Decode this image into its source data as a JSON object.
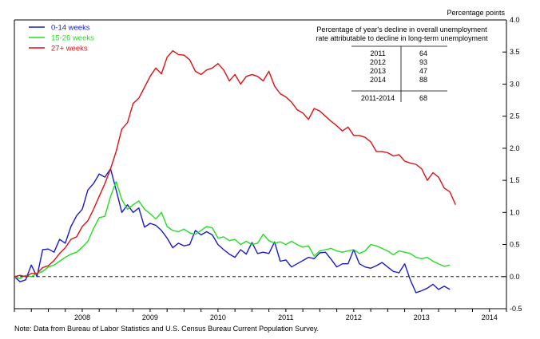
{
  "chart_data": {
    "type": "line",
    "ylabel": "Percentage points",
    "ylim": [
      -0.5,
      4.0
    ],
    "xlim": [
      "2007-07",
      "2014-10"
    ],
    "y_ticks": [
      "4.0",
      "3.5",
      "3.0",
      "2.5",
      "2.0",
      "1.5",
      "1.0",
      "0.5",
      "0.0",
      "-0.5"
    ],
    "x_tick_labels": [
      "2008",
      "2009",
      "2010",
      "2011",
      "2012",
      "2013",
      "2014"
    ],
    "zero_line": "dashed",
    "legend_position": "top-left",
    "series": [
      {
        "name": "0-14 weeks",
        "color": "#1a1acc",
        "points": [
          [
            "2007-07",
            0.0
          ],
          [
            "2007-08",
            -0.08
          ],
          [
            "2007-09",
            -0.05
          ],
          [
            "2007-10",
            0.18
          ],
          [
            "2007-11",
            0.0
          ],
          [
            "2007-12",
            0.42
          ],
          [
            "2008-01",
            0.43
          ],
          [
            "2008-02",
            0.38
          ],
          [
            "2008-03",
            0.58
          ],
          [
            "2008-04",
            0.52
          ],
          [
            "2008-05",
            0.78
          ],
          [
            "2008-06",
            0.95
          ],
          [
            "2008-07",
            1.05
          ],
          [
            "2008-08",
            1.35
          ],
          [
            "2008-09",
            1.45
          ],
          [
            "2008-10",
            1.6
          ],
          [
            "2008-11",
            1.55
          ],
          [
            "2008-12",
            1.68
          ],
          [
            "2009-01",
            1.35
          ],
          [
            "2009-02",
            1.0
          ],
          [
            "2009-03",
            1.12
          ],
          [
            "2009-04",
            1.0
          ],
          [
            "2009-05",
            1.07
          ],
          [
            "2009-06",
            0.77
          ],
          [
            "2009-07",
            0.83
          ],
          [
            "2009-08",
            0.8
          ],
          [
            "2009-09",
            0.72
          ],
          [
            "2009-10",
            0.6
          ],
          [
            "2009-11",
            0.45
          ],
          [
            "2009-12",
            0.52
          ],
          [
            "2010-01",
            0.48
          ],
          [
            "2010-02",
            0.5
          ],
          [
            "2010-03",
            0.72
          ],
          [
            "2010-04",
            0.65
          ],
          [
            "2010-05",
            0.7
          ],
          [
            "2010-06",
            0.65
          ],
          [
            "2010-07",
            0.5
          ],
          [
            "2010-08",
            0.42
          ],
          [
            "2010-09",
            0.35
          ],
          [
            "2010-10",
            0.3
          ],
          [
            "2010-11",
            0.42
          ],
          [
            "2010-12",
            0.35
          ],
          [
            "2011-01",
            0.53
          ],
          [
            "2011-02",
            0.36
          ],
          [
            "2011-03",
            0.38
          ],
          [
            "2011-04",
            0.36
          ],
          [
            "2011-05",
            0.54
          ],
          [
            "2011-06",
            0.24
          ],
          [
            "2011-07",
            0.26
          ],
          [
            "2011-08",
            0.15
          ],
          [
            "2011-09",
            0.2
          ],
          [
            "2011-10",
            0.25
          ],
          [
            "2011-11",
            0.3
          ],
          [
            "2011-12",
            0.28
          ],
          [
            "2012-01",
            0.37
          ],
          [
            "2012-02",
            0.38
          ],
          [
            "2012-03",
            0.27
          ],
          [
            "2012-04",
            0.15
          ],
          [
            "2012-05",
            0.2
          ],
          [
            "2012-06",
            0.2
          ],
          [
            "2012-07",
            0.42
          ],
          [
            "2012-08",
            0.2
          ],
          [
            "2012-09",
            0.15
          ],
          [
            "2012-10",
            0.13
          ],
          [
            "2012-11",
            0.17
          ],
          [
            "2012-12",
            0.22
          ],
          [
            "2013-01",
            0.15
          ],
          [
            "2013-02",
            0.08
          ],
          [
            "2013-03",
            0.06
          ],
          [
            "2013-04",
            0.2
          ],
          [
            "2013-05",
            -0.05
          ],
          [
            "2013-06",
            -0.25
          ],
          [
            "2013-07",
            -0.22
          ],
          [
            "2013-08",
            -0.18
          ],
          [
            "2013-09",
            -0.12
          ],
          [
            "2013-10",
            -0.2
          ],
          [
            "2013-11",
            -0.15
          ],
          [
            "2013-12",
            -0.2
          ]
        ]
      },
      {
        "name": "15-26 weeks",
        "color": "#22dd22",
        "points": [
          [
            "2007-07",
            0.0
          ],
          [
            "2007-08",
            -0.03
          ],
          [
            "2007-09",
            0.02
          ],
          [
            "2007-10",
            0.0
          ],
          [
            "2007-11",
            0.05
          ],
          [
            "2007-12",
            0.08
          ],
          [
            "2008-01",
            0.15
          ],
          [
            "2008-02",
            0.18
          ],
          [
            "2008-03",
            0.24
          ],
          [
            "2008-04",
            0.3
          ],
          [
            "2008-05",
            0.35
          ],
          [
            "2008-06",
            0.38
          ],
          [
            "2008-07",
            0.46
          ],
          [
            "2008-08",
            0.55
          ],
          [
            "2008-09",
            0.75
          ],
          [
            "2008-10",
            0.92
          ],
          [
            "2008-11",
            0.94
          ],
          [
            "2008-12",
            1.25
          ],
          [
            "2009-01",
            1.48
          ],
          [
            "2009-02",
            1.2
          ],
          [
            "2009-03",
            1.05
          ],
          [
            "2009-04",
            1.12
          ],
          [
            "2009-05",
            1.18
          ],
          [
            "2009-06",
            1.05
          ],
          [
            "2009-07",
            0.98
          ],
          [
            "2009-08",
            0.9
          ],
          [
            "2009-09",
            1.0
          ],
          [
            "2009-10",
            0.78
          ],
          [
            "2009-11",
            0.72
          ],
          [
            "2009-12",
            0.7
          ],
          [
            "2010-01",
            0.74
          ],
          [
            "2010-02",
            0.68
          ],
          [
            "2010-03",
            0.66
          ],
          [
            "2010-04",
            0.72
          ],
          [
            "2010-05",
            0.78
          ],
          [
            "2010-06",
            0.76
          ],
          [
            "2010-07",
            0.6
          ],
          [
            "2010-08",
            0.62
          ],
          [
            "2010-09",
            0.56
          ],
          [
            "2010-10",
            0.58
          ],
          [
            "2010-11",
            0.5
          ],
          [
            "2010-12",
            0.55
          ],
          [
            "2011-01",
            0.5
          ],
          [
            "2011-02",
            0.52
          ],
          [
            "2011-03",
            0.66
          ],
          [
            "2011-04",
            0.56
          ],
          [
            "2011-05",
            0.52
          ],
          [
            "2011-06",
            0.54
          ],
          [
            "2011-07",
            0.5
          ],
          [
            "2011-08",
            0.55
          ],
          [
            "2011-09",
            0.5
          ],
          [
            "2011-10",
            0.46
          ],
          [
            "2011-11",
            0.48
          ],
          [
            "2011-12",
            0.32
          ],
          [
            "2012-01",
            0.4
          ],
          [
            "2012-02",
            0.42
          ],
          [
            "2012-03",
            0.44
          ],
          [
            "2012-04",
            0.4
          ],
          [
            "2012-05",
            0.38
          ],
          [
            "2012-06",
            0.4
          ],
          [
            "2012-07",
            0.42
          ],
          [
            "2012-08",
            0.36
          ],
          [
            "2012-09",
            0.4
          ],
          [
            "2012-10",
            0.5
          ],
          [
            "2012-11",
            0.48
          ],
          [
            "2012-12",
            0.44
          ],
          [
            "2013-01",
            0.4
          ],
          [
            "2013-02",
            0.34
          ],
          [
            "2013-03",
            0.4
          ],
          [
            "2013-04",
            0.38
          ],
          [
            "2013-05",
            0.36
          ],
          [
            "2013-06",
            0.3
          ],
          [
            "2013-07",
            0.28
          ],
          [
            "2013-08",
            0.3
          ],
          [
            "2013-09",
            0.24
          ],
          [
            "2013-10",
            0.2
          ],
          [
            "2013-11",
            0.16
          ],
          [
            "2013-12",
            0.18
          ]
        ]
      },
      {
        "name": "27+ weeks",
        "color": "#dd1111",
        "points": [
          [
            "2007-07",
            0.0
          ],
          [
            "2007-08",
            0.02
          ],
          [
            "2007-09",
            0.0
          ],
          [
            "2007-10",
            0.05
          ],
          [
            "2007-11",
            0.05
          ],
          [
            "2007-12",
            0.14
          ],
          [
            "2008-01",
            0.17
          ],
          [
            "2008-02",
            0.25
          ],
          [
            "2008-03",
            0.36
          ],
          [
            "2008-04",
            0.45
          ],
          [
            "2008-05",
            0.58
          ],
          [
            "2008-06",
            0.62
          ],
          [
            "2008-07",
            0.78
          ],
          [
            "2008-08",
            0.87
          ],
          [
            "2008-09",
            1.05
          ],
          [
            "2008-10",
            1.25
          ],
          [
            "2008-11",
            1.45
          ],
          [
            "2008-12",
            1.68
          ],
          [
            "2009-01",
            1.95
          ],
          [
            "2009-02",
            2.3
          ],
          [
            "2009-03",
            2.4
          ],
          [
            "2009-04",
            2.7
          ],
          [
            "2009-05",
            2.78
          ],
          [
            "2009-06",
            2.95
          ],
          [
            "2009-07",
            3.12
          ],
          [
            "2009-08",
            3.25
          ],
          [
            "2009-09",
            3.16
          ],
          [
            "2009-10",
            3.42
          ],
          [
            "2009-11",
            3.52
          ],
          [
            "2009-12",
            3.46
          ],
          [
            "2010-01",
            3.45
          ],
          [
            "2010-02",
            3.38
          ],
          [
            "2010-03",
            3.2
          ],
          [
            "2010-04",
            3.15
          ],
          [
            "2010-05",
            3.22
          ],
          [
            "2010-06",
            3.25
          ],
          [
            "2010-07",
            3.32
          ],
          [
            "2010-08",
            3.22
          ],
          [
            "2010-09",
            3.05
          ],
          [
            "2010-10",
            3.15
          ],
          [
            "2010-11",
            3.0
          ],
          [
            "2010-12",
            3.12
          ],
          [
            "2011-01",
            3.15
          ],
          [
            "2011-02",
            3.12
          ],
          [
            "2011-03",
            3.05
          ],
          [
            "2011-04",
            3.2
          ],
          [
            "2011-05",
            2.97
          ],
          [
            "2011-06",
            2.85
          ],
          [
            "2011-07",
            2.8
          ],
          [
            "2011-08",
            2.72
          ],
          [
            "2011-09",
            2.6
          ],
          [
            "2011-10",
            2.55
          ],
          [
            "2011-11",
            2.45
          ],
          [
            "2011-12",
            2.62
          ],
          [
            "2012-01",
            2.58
          ],
          [
            "2012-02",
            2.5
          ],
          [
            "2012-03",
            2.42
          ],
          [
            "2012-04",
            2.35
          ],
          [
            "2012-05",
            2.27
          ],
          [
            "2012-06",
            2.33
          ],
          [
            "2012-07",
            2.2
          ],
          [
            "2012-08",
            2.2
          ],
          [
            "2012-09",
            2.17
          ],
          [
            "2012-10",
            2.1
          ],
          [
            "2012-11",
            1.95
          ],
          [
            "2012-12",
            1.95
          ],
          [
            "2013-01",
            1.93
          ],
          [
            "2013-02",
            1.88
          ],
          [
            "2013-03",
            1.9
          ],
          [
            "2013-04",
            1.8
          ],
          [
            "2013-05",
            1.77
          ],
          [
            "2013-06",
            1.75
          ],
          [
            "2013-07",
            1.68
          ],
          [
            "2013-08",
            1.5
          ],
          [
            "2013-09",
            1.62
          ],
          [
            "2013-10",
            1.55
          ],
          [
            "2013-11",
            1.38
          ],
          [
            "2013-12",
            1.32
          ],
          [
            "2014-01",
            1.12
          ]
        ]
      }
    ],
    "inset_table": {
      "title_line1": "Percentage of year's decline in overall unemployment",
      "title_line2": "rate attributable to decline in long-term unemployment",
      "rows": [
        {
          "year": "2011",
          "value": "64"
        },
        {
          "year": "2012",
          "value": "93"
        },
        {
          "year": "2013",
          "value": "47"
        },
        {
          "year": "2014",
          "value": "88"
        }
      ],
      "summary": {
        "year": "2011-2014",
        "value": "68"
      }
    },
    "note": "Note: Data from Bureau of Labor Statistics and U.S. Census Bureau Current Population Survey."
  }
}
